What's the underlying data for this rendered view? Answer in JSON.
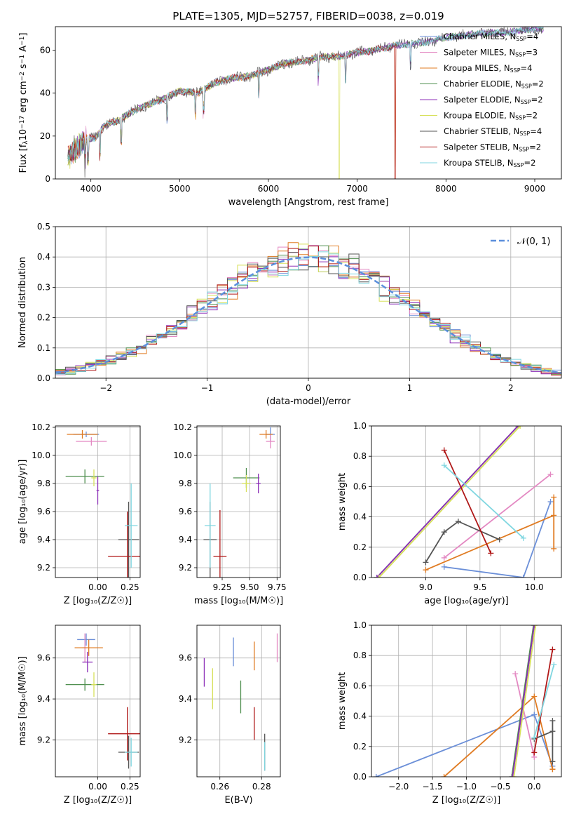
{
  "figure_title": "PLATE=1305, MJD=52757, FIBERID=0038, z=0.019",
  "colors": {
    "Chabrier MILES": "#6b8fd8",
    "Salpeter MILES": "#e388c2",
    "Kroupa MILES": "#e07b22",
    "Chabrier ELODIE": "#4f8f4f",
    "Salpeter ELODIE": "#8c2fb8",
    "Kroupa ELODIE": "#d7e05a",
    "Chabrier STELIB": "#555555",
    "Salpeter STELIB": "#b01818",
    "Kroupa STELIB": "#7fd6e0",
    "gauss": "#5b8fdc",
    "grid": "#b0b0b0"
  },
  "chart_data": [
    {
      "type": "line",
      "panel": "spectrum",
      "xlabel": "wavelength [Angstrom, rest frame]",
      "ylabel": "Flux [f",
      "xlim": [
        3600,
        9300
      ],
      "ylim": [
        0,
        71
      ],
      "xticks": [
        "4000",
        "5000",
        "6000",
        "7000",
        "8000",
        "9000"
      ],
      "yticks": [
        "0",
        "20",
        "40",
        "60"
      ],
      "legend_position": "upper right",
      "legend": [
        "Chabrier MILES",
        "Salpeter MILES",
        "Kroupa MILES",
        "Chabrier ELODIE",
        "Salpeter ELODIE",
        "Kroupa ELODIE",
        "Chabrier STELIB",
        "Salpeter STELIB",
        "Kroupa STELIB"
      ],
      "legend_nssp": [
        "4",
        "3",
        "4",
        "2",
        "2",
        "2",
        "4",
        "2",
        "2"
      ],
      "data_x": [
        3750,
        3850,
        3950,
        4050,
        4150,
        4300,
        4450,
        4600,
        4800,
        5000,
        5200,
        5400,
        5600,
        5800,
        6000,
        6200,
        6400,
        6600,
        6800,
        7000,
        7200,
        7400,
        7600,
        7800,
        8000,
        8200,
        8400,
        8600,
        8800,
        9000
      ],
      "data_y": [
        10,
        15,
        19,
        19,
        25,
        27,
        31,
        34,
        37,
        41,
        40,
        45,
        47,
        48,
        51,
        54,
        55,
        57,
        57,
        59,
        60,
        62,
        63,
        64,
        66,
        67,
        68,
        68,
        69,
        70
      ]
    },
    {
      "type": "line",
      "panel": "residuals",
      "xlabel": "(data-model)/error",
      "ylabel": "Normed distribution",
      "xlim": [
        -2.5,
        2.5
      ],
      "ylim": [
        0,
        0.5
      ],
      "xticks": [
        "−2",
        "−1",
        "0",
        "1",
        "2"
      ],
      "yticks": [
        "0.0",
        "0.1",
        "0.2",
        "0.3",
        "0.4",
        "0.5"
      ],
      "legend_position": "upper right",
      "legend_label": "𝒩(0, 1)",
      "gauss_mu": 0,
      "gauss_sigma": 1,
      "bin_width": 0.1
    },
    {
      "type": "scatter",
      "panel": "age-vs-Z",
      "xlabel": "Z [log₁₀(Z/Z☉)]",
      "ylabel": "age  [log₁₀(age/yr)]",
      "xlim": [
        -0.33,
        0.33
      ],
      "ylim": [
        9.13,
        10.21
      ],
      "xticks": [
        "0.00",
        "0.25"
      ],
      "yticks": [
        "9.2",
        "9.4",
        "9.6",
        "9.8",
        "10.0",
        "10.2"
      ],
      "points": [
        {
          "m": "Chabrier MILES",
          "x": -0.09,
          "y": 10.15,
          "xerr": 0.1,
          "yerr": 0.02
        },
        {
          "m": "Salpeter MILES",
          "x": -0.05,
          "y": 10.1,
          "xerr": 0.12,
          "yerr": 0.03
        },
        {
          "m": "Kroupa MILES",
          "x": -0.12,
          "y": 10.15,
          "xerr": 0.12,
          "yerr": 0.03
        },
        {
          "m": "Chabrier ELODIE",
          "x": -0.1,
          "y": 9.85,
          "xerr": 0.15,
          "yerr": 0.05
        },
        {
          "m": "Salpeter ELODIE",
          "x": 0.0,
          "y": 9.75,
          "xerr": 0.01,
          "yerr": 0.1
        },
        {
          "m": "Kroupa ELODIE",
          "x": -0.03,
          "y": 9.84,
          "xerr": 0.02,
          "yerr": 0.06
        },
        {
          "m": "Chabrier STELIB",
          "x": 0.24,
          "y": 9.4,
          "xerr": 0.08,
          "yerr": 0.27
        },
        {
          "m": "Salpeter STELIB",
          "x": 0.23,
          "y": 9.28,
          "xerr": 0.15,
          "yerr": 0.32
        },
        {
          "m": "Kroupa STELIB",
          "x": 0.26,
          "y": 9.5,
          "xerr": 0.05,
          "yerr": 0.3
        }
      ]
    },
    {
      "type": "scatter",
      "panel": "age-vs-mass",
      "xlabel": "mass [log₁₀(M/M☉)]",
      "ylabel": "",
      "xlim": [
        9.02,
        9.78
      ],
      "ylim": [
        9.13,
        10.21
      ],
      "xticks": [
        "9.25",
        "9.50",
        "9.75"
      ],
      "yticks": [
        "9.2",
        "9.4",
        "9.6",
        "9.8",
        "10.0",
        "10.2"
      ],
      "points": [
        {
          "m": "Chabrier MILES",
          "x": 9.69,
          "y": 10.15,
          "xerr": 0.04,
          "yerr": 0.05
        },
        {
          "m": "Salpeter MILES",
          "x": 9.69,
          "y": 10.1,
          "xerr": 0.04,
          "yerr": 0.05
        },
        {
          "m": "Kroupa MILES",
          "x": 9.65,
          "y": 10.15,
          "xerr": 0.06,
          "yerr": 0.03
        },
        {
          "m": "Chabrier ELODIE",
          "x": 9.47,
          "y": 9.84,
          "xerr": 0.12,
          "yerr": 0.07
        },
        {
          "m": "Salpeter ELODIE",
          "x": 9.58,
          "y": 9.8,
          "xerr": 0.02,
          "yerr": 0.07
        },
        {
          "m": "Kroupa ELODIE",
          "x": 9.47,
          "y": 9.8,
          "xerr": 0.04,
          "yerr": 0.06
        },
        {
          "m": "Chabrier STELIB",
          "x": 9.14,
          "y": 9.4,
          "xerr": 0.06,
          "yerr": 0.27
        },
        {
          "m": "Salpeter STELIB",
          "x": 9.23,
          "y": 9.28,
          "xerr": 0.06,
          "yerr": 0.33
        },
        {
          "m": "Kroupa STELIB",
          "x": 9.14,
          "y": 9.5,
          "xerr": 0.05,
          "yerr": 0.3
        }
      ]
    },
    {
      "type": "line",
      "panel": "weight-vs-age",
      "xlabel": "age  [log₁₀(age/yr)]",
      "ylabel": "mass weight",
      "xlim": [
        8.5,
        10.25
      ],
      "ylim": [
        0,
        1
      ],
      "xticks": [
        "9.0",
        "9.5",
        "10.0"
      ],
      "yticks": [
        "0.0",
        "0.2",
        "0.4",
        "0.6",
        "0.8",
        "1.0"
      ],
      "series": [
        {
          "m": "Chabrier MILES",
          "x": [
            9.17,
            9.9,
            10.15
          ],
          "y": [
            0.07,
            0.0,
            0.5
          ]
        },
        {
          "m": "Salpeter MILES",
          "x": [
            9.17,
            10.15
          ],
          "y": [
            0.13,
            0.68
          ]
        },
        {
          "m": "Kroupa MILES",
          "x": [
            9.0,
            10.18,
            10.18,
            10.18
          ],
          "y": [
            0.05,
            0.41,
            0.53,
            0.19
          ]
        },
        {
          "m": "Chabrier ELODIE",
          "x": [
            8.55,
            9.85
          ],
          "y": [
            0.0,
            1.0
          ]
        },
        {
          "m": "Salpeter ELODIE",
          "x": [
            8.55,
            9.85
          ],
          "y": [
            0.0,
            1.0
          ]
        },
        {
          "m": "Kroupa ELODIE",
          "x": [
            8.57,
            9.87
          ],
          "y": [
            0.0,
            1.0
          ]
        },
        {
          "m": "Chabrier STELIB",
          "x": [
            9.0,
            9.17,
            9.3,
            9.68
          ],
          "y": [
            0.1,
            0.3,
            0.37,
            0.25
          ]
        },
        {
          "m": "Salpeter STELIB",
          "x": [
            9.17,
            9.6
          ],
          "y": [
            0.84,
            0.16
          ]
        },
        {
          "m": "Kroupa STELIB",
          "x": [
            9.17,
            9.9
          ],
          "y": [
            0.74,
            0.26
          ]
        }
      ]
    },
    {
      "type": "scatter",
      "panel": "mass-vs-Z",
      "xlabel": "Z [log₁₀(Z/Z☉)]",
      "ylabel": "mass [log₁₀(M/M☉)]",
      "xlim": [
        -0.33,
        0.33
      ],
      "ylim": [
        9.02,
        9.76
      ],
      "xticks": [
        "0.00",
        "0.25"
      ],
      "yticks": [
        "9.2",
        "9.4",
        "9.6"
      ],
      "points": [
        {
          "m": "Chabrier MILES",
          "x": -0.09,
          "y": 9.69,
          "xerr": 0.07,
          "yerr": 0.03
        },
        {
          "m": "Salpeter MILES",
          "x": -0.1,
          "y": 9.65,
          "xerr": 0.02,
          "yerr": 0.07
        },
        {
          "m": "Kroupa MILES",
          "x": -0.07,
          "y": 9.65,
          "xerr": 0.11,
          "yerr": 0.04
        },
        {
          "m": "Chabrier ELODIE",
          "x": -0.1,
          "y": 9.47,
          "xerr": 0.15,
          "yerr": 0.03
        },
        {
          "m": "Salpeter ELODIE",
          "x": -0.08,
          "y": 9.58,
          "xerr": 0.04,
          "yerr": 0.05
        },
        {
          "m": "Kroupa ELODIE",
          "x": -0.03,
          "y": 9.47,
          "xerr": 0.02,
          "yerr": 0.06
        },
        {
          "m": "Chabrier STELIB",
          "x": 0.24,
          "y": 9.14,
          "xerr": 0.08,
          "yerr": 0.08
        },
        {
          "m": "Salpeter STELIB",
          "x": 0.23,
          "y": 9.23,
          "xerr": 0.15,
          "yerr": 0.13
        },
        {
          "m": "Kroupa STELIB",
          "x": 0.26,
          "y": 9.14,
          "xerr": 0.05,
          "yerr": 0.07
        }
      ]
    },
    {
      "type": "scatter",
      "panel": "mass-vs-EBV",
      "xlabel": "E(B-V)",
      "ylabel": "",
      "xlim": [
        0.249,
        0.289
      ],
      "ylim": [
        9.02,
        9.76
      ],
      "xticks": [
        "0.26",
        "0.28"
      ],
      "yticks": [
        "9.2",
        "9.4",
        "9.6"
      ],
      "points": [
        {
          "m": "Chabrier MILES",
          "x": 0.2665,
          "y": 9.63,
          "xerr": 0,
          "yerr": 0.07
        },
        {
          "m": "Salpeter MILES",
          "x": 0.2875,
          "y": 9.65,
          "xerr": 0,
          "yerr": 0.07
        },
        {
          "m": "Kroupa MILES",
          "x": 0.2765,
          "y": 9.61,
          "xerr": 0,
          "yerr": 0.07
        },
        {
          "m": "Chabrier ELODIE",
          "x": 0.27,
          "y": 9.41,
          "xerr": 0,
          "yerr": 0.08
        },
        {
          "m": "Salpeter ELODIE",
          "x": 0.2525,
          "y": 9.53,
          "xerr": 0,
          "yerr": 0.07
        },
        {
          "m": "Kroupa ELODIE",
          "x": 0.2565,
          "y": 9.45,
          "xerr": 0,
          "yerr": 0.1
        },
        {
          "m": "Chabrier STELIB",
          "x": 0.2815,
          "y": 9.14,
          "xerr": 0,
          "yerr": 0.09
        },
        {
          "m": "Salpeter STELIB",
          "x": 0.2765,
          "y": 9.28,
          "xerr": 0,
          "yerr": 0.08
        },
        {
          "m": "Kroupa STELIB",
          "x": 0.2815,
          "y": 9.12,
          "xerr": 0,
          "yerr": 0.07
        }
      ]
    },
    {
      "type": "line",
      "panel": "weight-vs-Z",
      "xlabel": "Z [log₁₀(Z/Z☉)]",
      "ylabel": "mass weight",
      "xlim": [
        -2.4,
        0.4
      ],
      "ylim": [
        0,
        1
      ],
      "xticks": [
        "−2.0",
        "−1.5",
        "−1.0",
        "−0.5",
        "0.0"
      ],
      "yticks": [
        "0.0",
        "0.2",
        "0.4",
        "0.6",
        "0.8",
        "1.0"
      ],
      "series": [
        {
          "m": "Chabrier MILES",
          "x": [
            -2.33,
            0.0,
            0.27
          ],
          "y": [
            0.0,
            0.41,
            0.07
          ]
        },
        {
          "m": "Salpeter MILES",
          "x": [
            -0.28,
            0.0
          ],
          "y": [
            0.68,
            0.13
          ]
        },
        {
          "m": "Kroupa MILES",
          "x": [
            -1.33,
            0.0,
            0.27,
            0.27
          ],
          "y": [
            0.0,
            0.53,
            0.05,
            0.05
          ]
        },
        {
          "m": "Chabrier ELODIE",
          "x": [
            -0.33,
            -0.01
          ],
          "y": [
            0.0,
            1.0
          ]
        },
        {
          "m": "Salpeter ELODIE",
          "x": [
            -0.32,
            0.0
          ],
          "y": [
            0.0,
            1.0
          ]
        },
        {
          "m": "Kroupa ELODIE",
          "x": [
            -0.3,
            0.02
          ],
          "y": [
            0.0,
            1.0
          ]
        },
        {
          "m": "Chabrier STELIB",
          "x": [
            0.0,
            0.27,
            0.27,
            0.27
          ],
          "y": [
            0.25,
            0.3,
            0.37,
            0.1
          ]
        },
        {
          "m": "Salpeter STELIB",
          "x": [
            0.0,
            0.27
          ],
          "y": [
            0.16,
            0.84
          ]
        },
        {
          "m": "Kroupa STELIB",
          "x": [
            0.0,
            0.29
          ],
          "y": [
            0.26,
            0.74
          ]
        }
      ]
    }
  ]
}
